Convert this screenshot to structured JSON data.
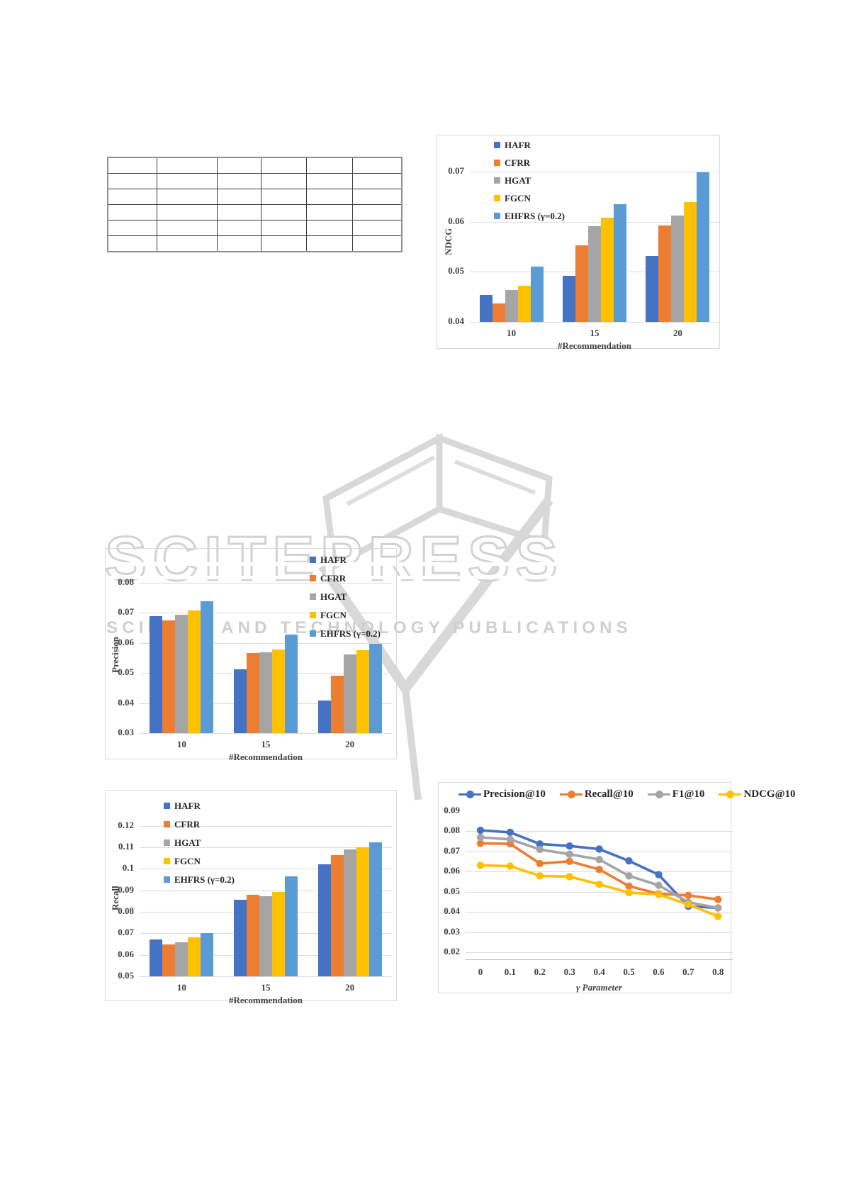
{
  "watermark": {
    "title": "SCITEPRESS",
    "subtitle": "SCIENCE AND TECHNOLOGY PUBLICATIONS",
    "color": "#d2d2d2"
  },
  "table": {
    "rows": 6,
    "cols": 6,
    "cells": [
      [
        "",
        "",
        "",
        "",
        "",
        ""
      ],
      [
        "",
        "",
        "",
        "",
        "",
        ""
      ],
      [
        "",
        "",
        "",
        "",
        "",
        ""
      ],
      [
        "",
        "",
        "",
        "",
        "",
        ""
      ],
      [
        "",
        "",
        "",
        "",
        "",
        ""
      ],
      [
        "",
        "",
        "",
        "",
        "",
        ""
      ]
    ]
  },
  "colors": {
    "hafr": "#4472C4",
    "cfrr": "#ED7D31",
    "hgat": "#A5A5A5",
    "fgcn": "#FFC000",
    "ehfrs": "#5B9BD5",
    "gridline": "#dcdcdc",
    "tick_text": "#404040"
  },
  "chart_data": [
    {
      "id": "ndcg",
      "type": "bar",
      "title": "",
      "ylabel": "NDCG",
      "xlabel": "#Recommendation",
      "categories": [
        "10",
        "15",
        "20"
      ],
      "ylim": [
        0.04,
        0.07
      ],
      "yticks": [
        {
          "v": 0.04,
          "label": "0.04"
        },
        {
          "v": 0.05,
          "label": "0.05"
        },
        {
          "v": 0.06,
          "label": "0.06"
        },
        {
          "v": 0.07,
          "label": "0.07"
        }
      ],
      "grid": true,
      "legend_position": "top-left-vertical",
      "series": [
        {
          "name": "HAFR",
          "color": "#4472C4",
          "values": [
            0.0454,
            0.0492,
            0.0531
          ]
        },
        {
          "name": "CFRR",
          "color": "#ED7D31",
          "values": [
            0.0437,
            0.0553,
            0.0593
          ]
        },
        {
          "name": "HGAT",
          "color": "#A5A5A5",
          "values": [
            0.0464,
            0.0591,
            0.0612
          ]
        },
        {
          "name": "FGCN",
          "color": "#FFC000",
          "values": [
            0.0472,
            0.0608,
            0.0639
          ]
        },
        {
          "name": "EHFRS (γ=0.2)",
          "color": "#5B9BD5",
          "values": [
            0.0511,
            0.0635,
            0.0698
          ]
        }
      ]
    },
    {
      "id": "precision",
      "type": "bar",
      "title": "",
      "ylabel": "Precision",
      "xlabel": "#Recommendation",
      "categories": [
        "10",
        "15",
        "20"
      ],
      "ylim": [
        0.03,
        0.08
      ],
      "yticks": [
        {
          "v": 0.03,
          "label": "0.03"
        },
        {
          "v": 0.04,
          "label": "0.04"
        },
        {
          "v": 0.05,
          "label": "0.05"
        },
        {
          "v": 0.06,
          "label": "0.06"
        },
        {
          "v": 0.07,
          "label": "0.07"
        },
        {
          "v": 0.08,
          "label": "0.08"
        }
      ],
      "grid": true,
      "legend_position": "top-right-vertical",
      "series": [
        {
          "name": "HAFR",
          "color": "#4472C4",
          "values": [
            0.069,
            0.0512,
            0.0408
          ]
        },
        {
          "name": "CFRR",
          "color": "#ED7D31",
          "values": [
            0.0674,
            0.0567,
            0.0491
          ]
        },
        {
          "name": "HGAT",
          "color": "#A5A5A5",
          "values": [
            0.0693,
            0.0569,
            0.0562
          ]
        },
        {
          "name": "FGCN",
          "color": "#FFC000",
          "values": [
            0.0709,
            0.0579,
            0.0575
          ]
        },
        {
          "name": "EHFRS (γ=0.2)",
          "color": "#5B9BD5",
          "values": [
            0.0739,
            0.0627,
            0.0596
          ]
        }
      ]
    },
    {
      "id": "recall",
      "type": "bar",
      "title": "",
      "ylabel": "Recall",
      "xlabel": "#Recommendation",
      "categories": [
        "10",
        "15",
        "20"
      ],
      "ylim": [
        0.05,
        0.12
      ],
      "yticks": [
        {
          "v": 0.05,
          "label": "0.05"
        },
        {
          "v": 0.06,
          "label": "0.06"
        },
        {
          "v": 0.07,
          "label": "0.07"
        },
        {
          "v": 0.08,
          "label": "0.08"
        },
        {
          "v": 0.09,
          "label": "0.09"
        },
        {
          "v": 0.1,
          "label": "0.1"
        },
        {
          "v": 0.11,
          "label": "0.11"
        },
        {
          "v": 0.12,
          "label": "0.12"
        }
      ],
      "grid": true,
      "legend_position": "top-left-vertical",
      "series": [
        {
          "name": "HAFR",
          "color": "#4472C4",
          "values": [
            0.067,
            0.0857,
            0.1021
          ]
        },
        {
          "name": "CFRR",
          "color": "#ED7D31",
          "values": [
            0.0647,
            0.0881,
            0.1064
          ]
        },
        {
          "name": "HGAT",
          "color": "#A5A5A5",
          "values": [
            0.0657,
            0.0873,
            0.1091
          ]
        },
        {
          "name": "FGCN",
          "color": "#FFC000",
          "values": [
            0.0681,
            0.0893,
            0.1101
          ]
        },
        {
          "name": "EHFRS (γ=0.2)",
          "color": "#5B9BD5",
          "values": [
            0.07,
            0.0966,
            0.1124
          ]
        }
      ]
    },
    {
      "id": "gamma",
      "type": "line",
      "title": "",
      "ylabel": "",
      "xlabel": "γ Parameter",
      "x": [
        "0",
        "0.1",
        "0.2",
        "0.3",
        "0.4",
        "0.5",
        "0.6",
        "0.7",
        "0.8"
      ],
      "ylim": [
        0.02,
        0.09
      ],
      "yticks": [
        {
          "v": 0.02,
          "label": "0.02"
        },
        {
          "v": 0.03,
          "label": "0.03"
        },
        {
          "v": 0.04,
          "label": "0.04"
        },
        {
          "v": 0.05,
          "label": "0.05"
        },
        {
          "v": 0.06,
          "label": "0.06"
        },
        {
          "v": 0.07,
          "label": "0.07"
        },
        {
          "v": 0.08,
          "label": "0.08"
        },
        {
          "v": 0.09,
          "label": "0.09"
        }
      ],
      "grid": true,
      "legend_position": "top-horizontal",
      "series": [
        {
          "name": "Precision@10",
          "color": "#4472C4",
          "values": [
            0.0805,
            0.0795,
            0.0737,
            0.0727,
            0.0712,
            0.0653,
            0.0585,
            0.0428,
            0.042
          ]
        },
        {
          "name": "Recall@10",
          "color": "#ED7D31",
          "values": [
            0.074,
            0.0738,
            0.064,
            0.0651,
            0.0611,
            0.0528,
            0.049,
            0.0482,
            0.0462
          ]
        },
        {
          "name": "F1@10",
          "color": "#A5A5A5",
          "values": [
            0.077,
            0.076,
            0.071,
            0.0686,
            0.066,
            0.0579,
            0.0532,
            0.0448,
            0.042
          ]
        },
        {
          "name": "NDCG@10",
          "color": "#FFC000",
          "values": [
            0.0631,
            0.0627,
            0.0579,
            0.0575,
            0.0537,
            0.0496,
            0.0487,
            0.0437,
            0.0378
          ]
        }
      ]
    }
  ]
}
